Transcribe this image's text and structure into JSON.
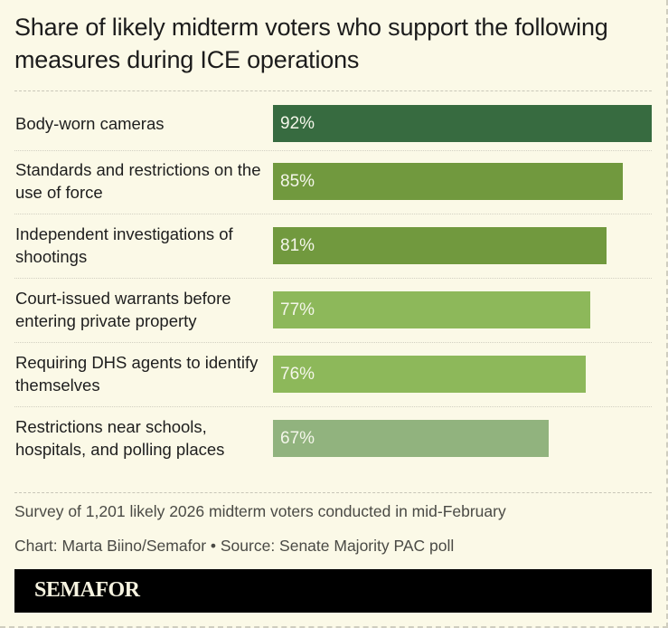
{
  "chart_data": {
    "type": "bar",
    "orientation": "horizontal",
    "title": "Share of likely midterm voters who support the following measures during ICE operations",
    "categories": [
      "Body-worn cameras",
      "Standards and restrictions on the use of force",
      "Independent investigations of shootings",
      "Court-issued warrants before entering private property",
      "Requiring DHS agents to identify themselves",
      "Restrictions near schools, hospitals, and polling places"
    ],
    "values": [
      92,
      85,
      81,
      77,
      76,
      67
    ],
    "data_labels": [
      "92%",
      "85%",
      "81%",
      "77%",
      "76%",
      "67%"
    ],
    "colors": [
      "#376b40",
      "#71993e",
      "#71993e",
      "#8db85a",
      "#8db85a",
      "#91b37e"
    ],
    "xlim": [
      0,
      92
    ],
    "grid": false,
    "legend": "none"
  },
  "notes": {
    "survey": "Survey of 1,201 likely 2026 midterm voters conducted in mid-February",
    "source": "Chart: Marta Biino/Semafor • Source: Senate Majority PAC poll"
  },
  "footer": {
    "logo": "SEMAFOR"
  }
}
